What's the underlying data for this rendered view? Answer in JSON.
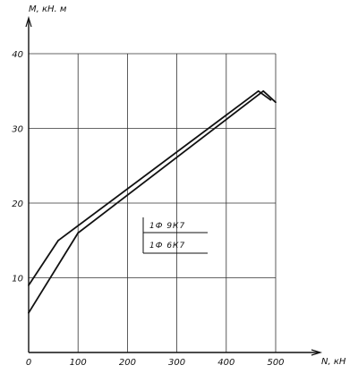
{
  "chart_data": {
    "type": "line",
    "title": "",
    "xlabel": "N, кН",
    "ylabel": "M, кН. м",
    "xlim": [
      0,
      500
    ],
    "ylim": [
      0,
      40
    ],
    "x_ticks": [
      0,
      100,
      200,
      300,
      400,
      500
    ],
    "y_ticks": [
      10,
      20,
      30,
      40
    ],
    "x_tick_labels": [
      "0",
      "100",
      "200",
      "300",
      "400",
      "500"
    ],
    "y_tick_labels": [
      "10",
      "20",
      "30",
      "40"
    ],
    "grid": true,
    "legend_position": "center-right",
    "series": [
      {
        "name": "1Ф 9К7",
        "x": [
          0,
          60,
          465,
          490
        ],
        "y": [
          9,
          15,
          35,
          33.8
        ]
      },
      {
        "name": "1Ф 6К7",
        "x": [
          0,
          100,
          475,
          500
        ],
        "y": [
          5.3,
          16,
          35,
          33.5
        ]
      }
    ],
    "colors": {
      "line": "#111111",
      "grid": "#333333"
    }
  }
}
